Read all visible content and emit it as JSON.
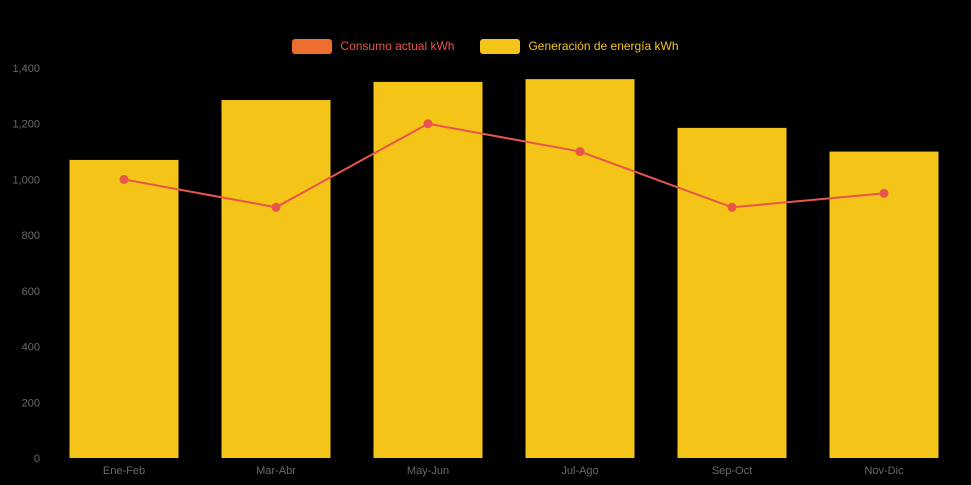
{
  "colors": {
    "background": "#000000",
    "axis_text": "#696969"
  },
  "legend": {
    "items": [
      {
        "id": "consumo",
        "label": "Consumo actual kWh",
        "swatch_color": "#ED6E2E",
        "label_color": "#E8554A"
      },
      {
        "id": "generacion",
        "label": "Generación de energía kWh",
        "swatch_color": "#F5C418",
        "label_color": "#F5C418"
      }
    ]
  },
  "chart_data": {
    "type": "bar+line",
    "categories": [
      "Ene-Feb",
      "Mar-Abr",
      "May-Jun",
      "Jul-Ago",
      "Sep-Oct",
      "Nov-Dic"
    ],
    "series": [
      {
        "name": "Consumo actual kWh",
        "type": "line",
        "color": "#E8554A",
        "values": [
          1000,
          900,
          1200,
          1100,
          900,
          950
        ]
      },
      {
        "name": "Generación de energía kWh",
        "type": "bar",
        "color": "#F5C418",
        "values": [
          1070,
          1285,
          1350,
          1360,
          1185,
          1100
        ]
      }
    ],
    "ylim": [
      0,
      1400
    ],
    "yticks": [
      {
        "value": 0,
        "label": "0"
      },
      {
        "value": 200,
        "label": "200"
      },
      {
        "value": 400,
        "label": "400"
      },
      {
        "value": 600,
        "label": "600"
      },
      {
        "value": 800,
        "label": "800"
      },
      {
        "value": 1000,
        "label": "1,000"
      },
      {
        "value": 1200,
        "label": "1,200"
      },
      {
        "value": 1400,
        "label": "1,400"
      }
    ],
    "grid": false,
    "legend_position": "top-center"
  }
}
